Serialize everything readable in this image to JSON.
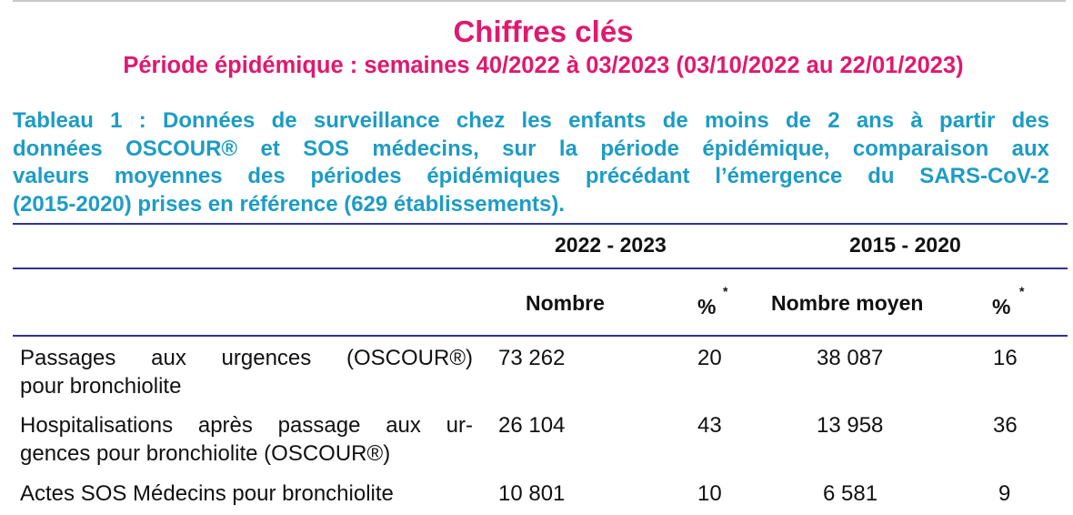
{
  "header": {
    "title": "Chiffres clés",
    "subtitle": "Période épidémique : semaines 40/2022 à 03/2023 (03/10/2022 au 22/01/2023)"
  },
  "caption": {
    "lines": [
      "Tableau 1 : Données de surveillance chez les enfants de moins de 2 ans à partir des",
      "données OSCOUR® et SOS médecins, sur la période épidémique, comparaison aux",
      "valeurs moyennes des périodes épidémiques précédant l’émergence du SARS-CoV-2",
      "(2015-2020) prises en référence (629 établissements)."
    ]
  },
  "table": {
    "periods": [
      "2022 - 2023",
      "2015 - 2020"
    ],
    "columns": [
      "Nombre",
      "%",
      "Nombre moyen",
      "%"
    ],
    "footnote_marker": "*",
    "rows": [
      {
        "label_lines": [
          "Passages aux urgences (OSCOUR®)",
          "pour bronchiolite"
        ],
        "values": [
          "73 262",
          "20",
          "38 087",
          "16"
        ]
      },
      {
        "label_lines": [
          "Hospitalisations après passage aux ur-",
          "gences pour bronchiolite (OSCOUR®)"
        ],
        "values": [
          "26 104",
          "43",
          "13 958",
          "36"
        ]
      },
      {
        "label_lines": [
          "Actes SOS Médecins pour bronchiolite"
        ],
        "values": [
          "10 801",
          "10",
          "6 581",
          "9"
        ]
      }
    ]
  }
}
